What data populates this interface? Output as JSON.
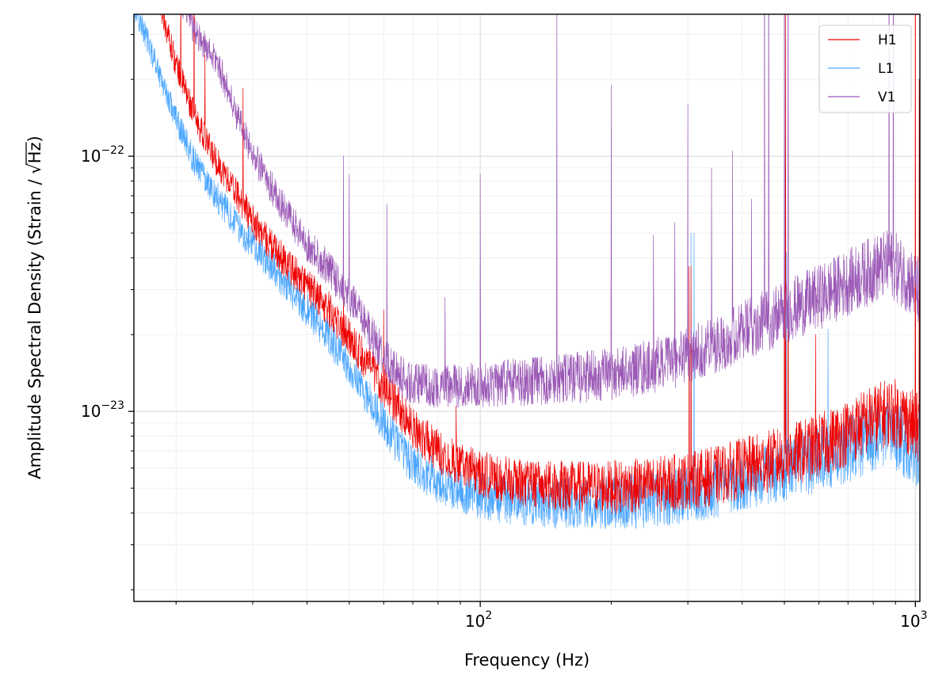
{
  "chart_data": {
    "type": "line",
    "title": "",
    "xlabel": "Frequency (Hz)",
    "ylabel_prefix": "Amplitude Spectral Density (Strain / ",
    "ylabel_root": "√",
    "ylabel_unit": "Hz",
    "ylabel_suffix": ")",
    "xscale": "log",
    "yscale": "log",
    "xlim": [
      16,
      1024
    ],
    "ylim": [
      1.8e-24,
      3.6e-22
    ],
    "grid": true,
    "legend_position": "top-right",
    "x_ticks": [
      {
        "value": 100,
        "base": "10",
        "exp": "2"
      },
      {
        "value": 1000,
        "base": "10",
        "exp": "3"
      }
    ],
    "y_ticks": [
      {
        "value": 1e-23,
        "base": "10",
        "exp": "−23"
      },
      {
        "value": 1e-22,
        "base": "10",
        "exp": "−22"
      }
    ],
    "series": [
      {
        "name": "H1",
        "color": "#ee0000",
        "curve": [
          [
            16,
            1.6e-21
          ],
          [
            18,
            4.5e-22
          ],
          [
            20,
            2.3e-22
          ],
          [
            22,
            1.45e-22
          ],
          [
            24,
            1.05e-22
          ],
          [
            26,
            8.4e-23
          ],
          [
            28,
            6.8e-23
          ],
          [
            30,
            5.6e-23
          ],
          [
            33,
            4.5e-23
          ],
          [
            36,
            3.8e-23
          ],
          [
            40,
            3.1e-23
          ],
          [
            45,
            2.5e-23
          ],
          [
            50,
            1.95e-23
          ],
          [
            55,
            1.55e-23
          ],
          [
            60,
            1.25e-23
          ],
          [
            65,
            1.03e-23
          ],
          [
            70,
            8.6e-24
          ],
          [
            80,
            7e-24
          ],
          [
            90,
            6.2e-24
          ],
          [
            100,
            5.7e-24
          ],
          [
            120,
            5.3e-24
          ],
          [
            150,
            5.1e-24
          ],
          [
            200,
            5.05e-24
          ],
          [
            250,
            5.15e-24
          ],
          [
            300,
            5.35e-24
          ],
          [
            350,
            5.6e-24
          ],
          [
            400,
            6e-24
          ],
          [
            500,
            6.6e-24
          ],
          [
            600,
            7.3e-24
          ],
          [
            700,
            8.3e-24
          ],
          [
            800,
            9.4e-24
          ],
          [
            880,
            1e-23
          ],
          [
            950,
            9.4e-24
          ],
          [
            1024,
            8.4e-24
          ]
        ],
        "peaks": [
          [
            20.5,
            6e-22
          ],
          [
            22,
            6e-22
          ],
          [
            23.3,
            2.5e-22
          ],
          [
            28.5,
            1.85e-22
          ],
          [
            48.5,
            2.8e-23
          ],
          [
            60,
            2.5e-23
          ],
          [
            88,
            1.05e-23
          ],
          [
            302,
            3.7e-23
          ],
          [
            305,
            3.7e-23
          ],
          [
            500,
            6e-22
          ],
          [
            503,
            4e-22
          ],
          [
            510,
            1.5e-22
          ],
          [
            590,
            2e-23
          ],
          [
            1000,
            3e-21
          ],
          [
            1020,
            2e-22
          ]
        ]
      },
      {
        "name": "L1",
        "color": "#4ba6ff",
        "curve": [
          [
            16,
            3.9e-22
          ],
          [
            18,
            2.3e-22
          ],
          [
            20,
            1.4e-22
          ],
          [
            22,
            9.6e-23
          ],
          [
            25,
            6.8e-23
          ],
          [
            28,
            5.2e-23
          ],
          [
            31,
            4.2e-23
          ],
          [
            35,
            3.3e-23
          ],
          [
            40,
            2.5e-23
          ],
          [
            45,
            1.95e-23
          ],
          [
            50,
            1.5e-23
          ],
          [
            55,
            1.15e-23
          ],
          [
            60,
            9e-24
          ],
          [
            65,
            7.3e-24
          ],
          [
            70,
            6.2e-24
          ],
          [
            80,
            5.3e-24
          ],
          [
            90,
            4.9e-24
          ],
          [
            100,
            4.65e-24
          ],
          [
            120,
            4.45e-24
          ],
          [
            150,
            4.35e-24
          ],
          [
            200,
            4.4e-24
          ],
          [
            250,
            4.5e-24
          ],
          [
            300,
            4.7e-24
          ],
          [
            350,
            5e-24
          ],
          [
            400,
            5.3e-24
          ],
          [
            500,
            5.9e-24
          ],
          [
            600,
            6.5e-24
          ],
          [
            700,
            7.1e-24
          ],
          [
            800,
            7.8e-24
          ],
          [
            880,
            8.1e-24
          ],
          [
            950,
            7.5e-24
          ],
          [
            1024,
            6.7e-24
          ]
        ],
        "peaks": [
          [
            305,
            5e-23
          ],
          [
            310,
            5e-23
          ],
          [
            505,
            4.2e-23
          ],
          [
            510,
            2.8e-23
          ],
          [
            630,
            2.1e-23
          ],
          [
            1020,
            1.2e-23
          ]
        ]
      },
      {
        "name": "V1",
        "color": "#9b59b6",
        "curve": [
          [
            16,
            1.5e-21
          ],
          [
            18,
            7.5e-22
          ],
          [
            20,
            4.5e-22
          ],
          [
            22,
            3.1e-22
          ],
          [
            25,
            2.3e-22
          ],
          [
            28,
            1.35e-22
          ],
          [
            30,
            1.02e-22
          ],
          [
            35,
            6.4e-23
          ],
          [
            40,
            4.5e-23
          ],
          [
            45,
            3.6e-23
          ],
          [
            50,
            2.8e-23
          ],
          [
            55,
            2.15e-23
          ],
          [
            60,
            1.65e-23
          ],
          [
            65,
            1.38e-23
          ],
          [
            70,
            1.28e-23
          ],
          [
            80,
            1.25e-23
          ],
          [
            100,
            1.27e-23
          ],
          [
            120,
            1.3e-23
          ],
          [
            150,
            1.33e-23
          ],
          [
            200,
            1.4e-23
          ],
          [
            250,
            1.5e-23
          ],
          [
            300,
            1.65e-23
          ],
          [
            350,
            1.85e-23
          ],
          [
            400,
            2.05e-23
          ],
          [
            500,
            2.45e-23
          ],
          [
            600,
            2.8e-23
          ],
          [
            700,
            3.2e-23
          ],
          [
            800,
            3.6e-23
          ],
          [
            880,
            3.8e-23
          ],
          [
            950,
            3.4e-23
          ],
          [
            1024,
            2.9e-23
          ]
        ],
        "peaks": [
          [
            26,
            2e-22
          ],
          [
            48.5,
            1e-22
          ],
          [
            50,
            8.5e-23
          ],
          [
            61,
            6.5e-23
          ],
          [
            83,
            2.8e-23
          ],
          [
            100,
            8.5e-23
          ],
          [
            150,
            4e-22
          ],
          [
            200,
            1.9e-22
          ],
          [
            250,
            4.9e-23
          ],
          [
            280,
            5.5e-23
          ],
          [
            300,
            1.6e-22
          ],
          [
            340,
            9e-23
          ],
          [
            380,
            1.05e-22
          ],
          [
            420,
            6.8e-23
          ],
          [
            450,
            2e-21
          ],
          [
            460,
            2e-21
          ],
          [
            500,
            2e-21
          ],
          [
            510,
            2e-21
          ],
          [
            870,
            2e-21
          ],
          [
            890,
            2e-21
          ]
        ]
      }
    ]
  }
}
